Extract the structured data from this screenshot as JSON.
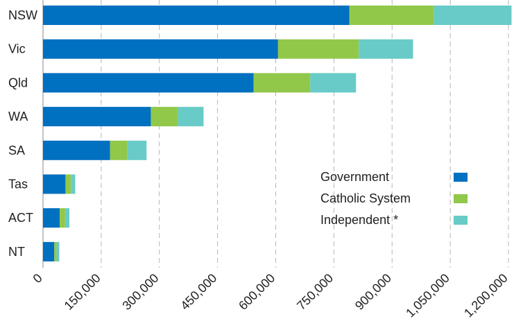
{
  "chart_data": {
    "type": "bar",
    "orientation": "horizontal",
    "stacked": true,
    "categories": [
      "NSW",
      "Vic",
      "Qld",
      "WA",
      "SA",
      "Tas",
      "ACT",
      "NT"
    ],
    "series": [
      {
        "name": "Government",
        "color": "#0070c0",
        "values": [
          790000,
          606000,
          543000,
          278000,
          173000,
          58000,
          43000,
          29000
        ]
      },
      {
        "name": "Catholic System",
        "color": "#92c84a",
        "values": [
          218000,
          208000,
          146000,
          70000,
          44000,
          14000,
          14000,
          6000
        ]
      },
      {
        "name": "Independent *",
        "color": "#68cbc7",
        "values": [
          200000,
          140000,
          118000,
          66000,
          50000,
          11000,
          11000,
          7000
        ]
      }
    ],
    "xlim": [
      0,
      1200000
    ],
    "xticks": [
      0,
      150000,
      300000,
      450000,
      600000,
      750000,
      900000,
      1050000,
      1200000
    ],
    "xtick_labels": [
      "0",
      "150,000",
      "300,000",
      "450,000",
      "600,000",
      "750,000",
      "900,000",
      "1,050,000",
      "1,200,000"
    ],
    "grid": "vertical dashed",
    "legend_position": "right-middle",
    "title": "",
    "xlabel": "",
    "ylabel": ""
  }
}
